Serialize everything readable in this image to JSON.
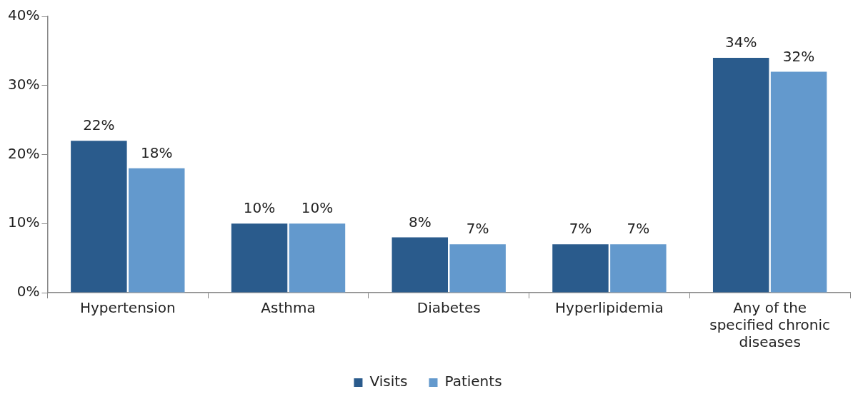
{
  "chart_data": {
    "type": "bar",
    "categories": [
      "Hypertension",
      "Asthma",
      "Diabetes",
      "Hyperlipidemia",
      "Any of the specified chronic diseases"
    ],
    "series": [
      {
        "name": "Visits",
        "color": "#2a5b8c",
        "values": [
          22,
          10,
          8,
          7,
          34
        ],
        "value_labels": [
          "22%",
          "10%",
          "8%",
          "7%",
          "34%"
        ]
      },
      {
        "name": "Patients",
        "color": "#6399cd",
        "values": [
          18,
          10,
          7,
          7,
          32
        ],
        "value_labels": [
          "18%",
          "10%",
          "7%",
          "7%",
          "32%"
        ]
      }
    ],
    "ylim": [
      0,
      40
    ],
    "yticks": [
      {
        "value": 0,
        "label": "0%"
      },
      {
        "value": 10,
        "label": "10%"
      },
      {
        "value": 20,
        "label": "20%"
      },
      {
        "value": 30,
        "label": "30%"
      },
      {
        "value": 40,
        "label": "40%"
      }
    ],
    "grid": false,
    "legend": "bottom"
  }
}
